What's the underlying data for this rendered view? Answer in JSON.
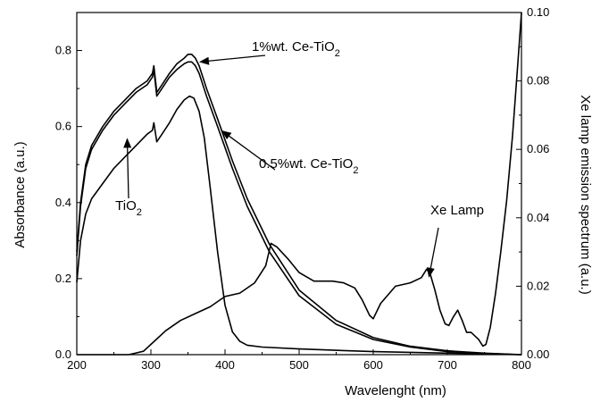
{
  "chart_data": {
    "type": "line",
    "title": "",
    "xlabel": "Wavelenght (nm)",
    "ylabel": "Absorbance (a.u.)",
    "y2label": "Xe lamp emission spectrum (a.u.)",
    "xlim": [
      200,
      800
    ],
    "ylim": [
      0,
      0.9
    ],
    "y2lim": [
      0,
      0.1
    ],
    "xticks": [
      200,
      300,
      400,
      500,
      600,
      700,
      800
    ],
    "yticks": [
      0.0,
      0.2,
      0.4,
      0.6,
      0.8
    ],
    "y2ticks": [
      0.0,
      0.02,
      0.04,
      0.06,
      0.08,
      0.1
    ],
    "grid": false,
    "series": [
      {
        "name": "1%wt. Ce-TiO2",
        "axis": "left",
        "x": [
          200,
          205,
          212,
          220,
          235,
          250,
          265,
          280,
          295,
          302,
          304,
          308,
          315,
          325,
          335,
          345,
          350,
          355,
          360,
          365,
          375,
          390,
          410,
          430,
          460,
          500,
          550,
          600,
          650,
          700,
          750,
          800
        ],
        "y": [
          0.27,
          0.4,
          0.5,
          0.55,
          0.6,
          0.64,
          0.67,
          0.7,
          0.72,
          0.74,
          0.76,
          0.69,
          0.71,
          0.74,
          0.765,
          0.78,
          0.79,
          0.79,
          0.78,
          0.76,
          0.7,
          0.62,
          0.51,
          0.41,
          0.29,
          0.17,
          0.09,
          0.045,
          0.022,
          0.01,
          0.004,
          0.0
        ]
      },
      {
        "name": "0.5%wt. Ce-TiO2",
        "axis": "left",
        "x": [
          200,
          205,
          212,
          220,
          235,
          250,
          265,
          280,
          295,
          302,
          304,
          308,
          315,
          325,
          335,
          345,
          350,
          355,
          360,
          365,
          375,
          390,
          410,
          430,
          460,
          500,
          550,
          600,
          650,
          700,
          750,
          800
        ],
        "y": [
          0.26,
          0.39,
          0.49,
          0.54,
          0.59,
          0.63,
          0.66,
          0.69,
          0.71,
          0.73,
          0.75,
          0.68,
          0.7,
          0.73,
          0.75,
          0.765,
          0.77,
          0.77,
          0.76,
          0.74,
          0.68,
          0.6,
          0.49,
          0.39,
          0.27,
          0.155,
          0.08,
          0.04,
          0.02,
          0.008,
          0.003,
          0.0
        ]
      },
      {
        "name": "TiO2",
        "axis": "left",
        "x": [
          200,
          205,
          212,
          220,
          235,
          250,
          265,
          280,
          295,
          302,
          304,
          308,
          315,
          325,
          335,
          345,
          352,
          358,
          365,
          372,
          380,
          390,
          400,
          410,
          420,
          430,
          450,
          500,
          600,
          700,
          800
        ],
        "y": [
          0.19,
          0.3,
          0.37,
          0.41,
          0.45,
          0.49,
          0.52,
          0.55,
          0.58,
          0.59,
          0.61,
          0.56,
          0.58,
          0.61,
          0.645,
          0.67,
          0.68,
          0.675,
          0.64,
          0.57,
          0.44,
          0.27,
          0.13,
          0.06,
          0.035,
          0.025,
          0.02,
          0.015,
          0.008,
          0.004,
          0.0
        ]
      },
      {
        "name": "Xe Lamp",
        "axis": "right",
        "x": [
          200,
          270,
          280,
          290,
          300,
          310,
          320,
          340,
          360,
          380,
          400,
          420,
          440,
          455,
          462,
          470,
          485,
          500,
          520,
          545,
          560,
          575,
          585,
          595,
          600,
          610,
          630,
          650,
          665,
          672,
          677,
          683,
          690,
          697,
          702,
          708,
          714,
          720,
          726,
          732,
          737,
          742,
          748,
          752,
          758,
          765,
          772,
          780,
          788,
          795,
          800
        ],
        "y": [
          0.0,
          0.0,
          0.0005,
          0.001,
          0.003,
          0.005,
          0.007,
          0.01,
          0.012,
          0.014,
          0.017,
          0.018,
          0.021,
          0.026,
          0.0325,
          0.0315,
          0.028,
          0.024,
          0.0215,
          0.0215,
          0.021,
          0.0195,
          0.016,
          0.0115,
          0.0105,
          0.015,
          0.02,
          0.021,
          0.0225,
          0.025,
          0.0235,
          0.019,
          0.013,
          0.009,
          0.0085,
          0.011,
          0.013,
          0.01,
          0.0065,
          0.0065,
          0.0055,
          0.0045,
          0.0025,
          0.003,
          0.008,
          0.018,
          0.03,
          0.045,
          0.064,
          0.085,
          0.1
        ]
      }
    ],
    "annotations": [
      {
        "text": "1%wt. Ce-TiO",
        "sub": "2",
        "target": [
          365,
          0.77
        ]
      },
      {
        "text": "0.5%wt. Ce-TiO",
        "sub": "2",
        "target": [
          395,
          0.59
        ]
      },
      {
        "text": "TiO",
        "sub": "2",
        "target": [
          268,
          0.57
        ]
      },
      {
        "text": "Xe Lamp",
        "target": [
          675,
          0.0225
        ],
        "axis": "right"
      }
    ]
  }
}
